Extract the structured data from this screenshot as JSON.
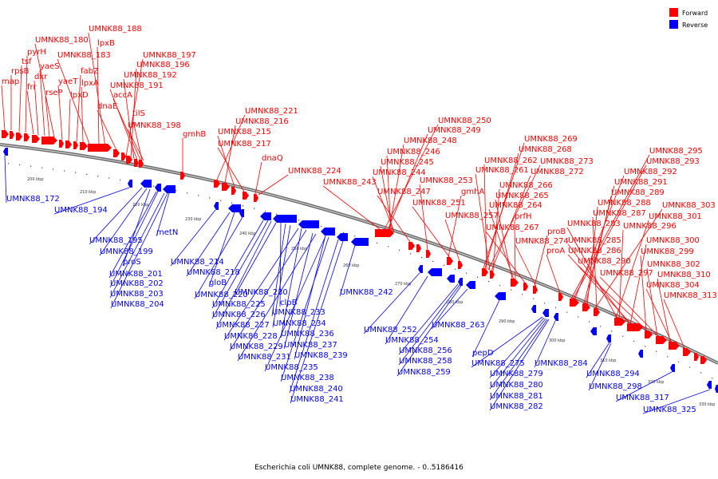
{
  "caption": "Escherichia coli UMNK88, complete genome. - 0..5186416",
  "legend": [
    {
      "label": "Forward",
      "color": "#ff0000"
    },
    {
      "label": "Reverse",
      "color": "#0000ff"
    }
  ],
  "colors": {
    "forward": "#ff0000",
    "reverse": "#0000ff",
    "backbone": "#909090"
  },
  "ticks": [
    "200 kbp",
    "210 kbp",
    "220 kbp",
    "230 kbp",
    "240 kbp",
    "250 kbp",
    "260 kbp",
    "270 kbp",
    "280 kbp",
    "290 kbp",
    "300 kbp",
    "310 kbp",
    "320 kbp",
    "330 kbp"
  ],
  "forward_labels": [
    "map",
    "rpsB",
    "tsf",
    "pyrH",
    "frr",
    "dxr",
    "yaeS",
    "rseP",
    "UMNK88_180",
    "yaeT",
    "lpxD",
    "fabZ",
    "lpxA",
    "UMNK88_183",
    "lpxB",
    "UMNK88_188",
    "UMNK88_197",
    "UMNK88_196",
    "UMNK88_192",
    "UMNK88_191",
    "accA",
    "dnaE",
    "tilS",
    "UMNK88_198",
    "gmhB",
    "UMNK88_221",
    "UMNK88_216",
    "UMNK88_215",
    "UMNK88_217",
    "dnaQ",
    "UMNK88_224",
    "UMNK88_243",
    "UMNK88_250",
    "UMNK88_249",
    "UMNK88_248",
    "UMNK88_246",
    "UMNK88_245",
    "UMNK88_244",
    "UMNK88_247",
    "UMNK88_253",
    "gmhA",
    "UMNK88_251",
    "UMNK88_257",
    "UMNK88_269",
    "UMNK88_268",
    "UMNK88_262",
    "UMNK88_273",
    "UMNK88_261",
    "UMNK88_272",
    "UMNK88_266",
    "UMNK88_265",
    "UMNK88_264",
    "prfH",
    "UMNK88_267",
    "proB",
    "UMNK88_274",
    "proA",
    "UMNK88_295",
    "UMNK88_293",
    "UMNK88_292",
    "UMNK88_291",
    "UMNK88_289",
    "UMNK88_288",
    "UMNK88_303",
    "UMNK88_287",
    "UMNK88_301",
    "UMNK88_283",
    "UMNK88_296",
    "UMNK88_285",
    "UMNK88_300",
    "UMNK88_286",
    "UMNK88_299",
    "UMNK88_290",
    "UMNK88_302",
    "UMNK88_297",
    "UMNK88_310",
    "UMNK88_304",
    "UMNK88_313"
  ],
  "reverse_labels": [
    "UMNK88_172",
    "UMNK88_194",
    "UMNK88_195",
    "metN",
    "UMNK88_199",
    "proS",
    "UMNK88_201",
    "UMNK88_202",
    "UMNK88_203",
    "UMNK88_204",
    "UMNK88_214",
    "UMNK88_218",
    "gloB",
    "UMNK88_220",
    "UMNK88_230",
    "UMNK88_225",
    "clpB",
    "UMNK88_226",
    "UMNK88_233",
    "UMNK88_227",
    "UMNK88_234",
    "UMNK88_228",
    "UMNK88_236",
    "UMNK88_229",
    "UMNK88_237",
    "UMNK88_231",
    "UMNK88_239",
    "UMNK88_235",
    "UMNK88_238",
    "UMNK88_240",
    "UMNK88_241",
    "UMNK88_242",
    "UMNK88_252",
    "UMNK88_254",
    "UMNK88_263",
    "UMNK88_256",
    "UMNK88_258",
    "UMNK88_259",
    "pepD",
    "UMNK88_275",
    "UMNK88_284",
    "UMNK88_279",
    "UMNK88_280",
    "UMNK88_281",
    "UMNK88_282",
    "UMNK88_294",
    "UMNK88_298",
    "UMNK88_317",
    "UMNK88_325"
  ]
}
